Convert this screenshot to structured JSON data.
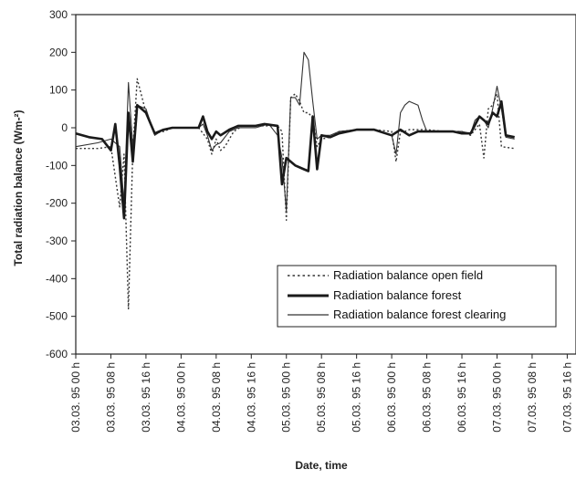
{
  "chart_data": {
    "type": "line",
    "title": "",
    "xlabel": "Date, time",
    "ylabel": "Total radiation balance (Wm-²)",
    "ylim": [
      -600,
      300
    ],
    "yticks": [
      300,
      200,
      100,
      0,
      -100,
      -200,
      -300,
      -400,
      -500,
      -600
    ],
    "x_tick_labels": [
      "03.03. 95 00 h",
      "03.03. 95 08 h",
      "03.03. 95 16 h",
      "04.03. 95 00 h",
      "04.03. 95 08 h",
      "04.03. 95 16 h",
      "05.03. 95 00 h",
      "05.03. 95 08 h",
      "05.03. 95 16 h",
      "06.03. 95 00 h",
      "06.03. 95 08 h",
      "06.03. 95 16 h",
      "07.03. 95 00 h",
      "07.03. 95 08 h",
      "07.03. 95 16 h"
    ],
    "xlim_hours": [
      0,
      114
    ],
    "x_unit_note": "",
    "grid": false,
    "legend_position": "lower-right",
    "series": [
      {
        "name": "Radiation balance open field",
        "style": "dotted",
        "color": "#333333",
        "points": [
          [
            0,
            -55
          ],
          [
            5,
            -55
          ],
          [
            8,
            -50
          ],
          [
            10,
            -210
          ],
          [
            11,
            -70
          ],
          [
            12,
            -480
          ],
          [
            13,
            -60
          ],
          [
            14,
            130
          ],
          [
            16,
            40
          ],
          [
            18,
            -15
          ],
          [
            20,
            -10
          ],
          [
            22,
            0
          ],
          [
            24,
            0
          ],
          [
            28,
            0
          ],
          [
            30,
            -30
          ],
          [
            31,
            -70
          ],
          [
            32,
            -30
          ],
          [
            33,
            -60
          ],
          [
            34,
            -50
          ],
          [
            36,
            -10
          ],
          [
            38,
            5
          ],
          [
            42,
            5
          ],
          [
            46,
            5
          ],
          [
            47,
            -10
          ],
          [
            48,
            -245
          ],
          [
            49,
            80
          ],
          [
            50,
            90
          ],
          [
            51,
            70
          ],
          [
            52,
            40
          ],
          [
            53,
            40
          ],
          [
            54,
            25
          ],
          [
            55,
            -50
          ],
          [
            56,
            -30
          ],
          [
            58,
            -25
          ],
          [
            60,
            -10
          ],
          [
            64,
            -5
          ],
          [
            68,
            -5
          ],
          [
            72,
            -10
          ],
          [
            73,
            -90
          ],
          [
            74,
            -10
          ],
          [
            75,
            -10
          ],
          [
            76,
            -5
          ],
          [
            80,
            -5
          ],
          [
            84,
            -10
          ],
          [
            88,
            -10
          ],
          [
            90,
            -20
          ],
          [
            92,
            10
          ],
          [
            93,
            -80
          ],
          [
            94,
            50
          ],
          [
            95,
            60
          ],
          [
            96,
            90
          ],
          [
            97,
            -50
          ],
          [
            100,
            -55
          ]
        ]
      },
      {
        "name": "Radiation balance forest",
        "style": "thick",
        "color": "#1a1a1a",
        "points": [
          [
            0,
            -15
          ],
          [
            3,
            -25
          ],
          [
            6,
            -30
          ],
          [
            8,
            -60
          ],
          [
            9,
            10
          ],
          [
            10,
            -100
          ],
          [
            11,
            -240
          ],
          [
            12,
            40
          ],
          [
            13,
            -90
          ],
          [
            14,
            60
          ],
          [
            16,
            40
          ],
          [
            18,
            -15
          ],
          [
            20,
            -5
          ],
          [
            22,
            0
          ],
          [
            25,
            0
          ],
          [
            28,
            0
          ],
          [
            29,
            30
          ],
          [
            30,
            -10
          ],
          [
            31,
            -30
          ],
          [
            32,
            -10
          ],
          [
            33,
            -20
          ],
          [
            35,
            -5
          ],
          [
            37,
            5
          ],
          [
            41,
            5
          ],
          [
            43,
            10
          ],
          [
            46,
            5
          ],
          [
            47,
            -150
          ],
          [
            48,
            -80
          ],
          [
            50,
            -100
          ],
          [
            52,
            -110
          ],
          [
            53,
            -115
          ],
          [
            54,
            30
          ],
          [
            55,
            -110
          ],
          [
            56,
            -20
          ],
          [
            58,
            -25
          ],
          [
            60,
            -15
          ],
          [
            64,
            -5
          ],
          [
            68,
            -5
          ],
          [
            72,
            -20
          ],
          [
            74,
            -5
          ],
          [
            76,
            -20
          ],
          [
            78,
            -10
          ],
          [
            82,
            -10
          ],
          [
            86,
            -10
          ],
          [
            88,
            -15
          ],
          [
            90,
            -15
          ],
          [
            92,
            30
          ],
          [
            93,
            20
          ],
          [
            94,
            10
          ],
          [
            95,
            40
          ],
          [
            96,
            30
          ],
          [
            97,
            70
          ],
          [
            98,
            -20
          ],
          [
            100,
            -25
          ]
        ]
      },
      {
        "name": "Radiation balance forest clearing",
        "style": "thin",
        "color": "#333333",
        "points": [
          [
            0,
            -50
          ],
          [
            5,
            -40
          ],
          [
            8,
            -30
          ],
          [
            10,
            -50
          ],
          [
            11,
            -200
          ],
          [
            12,
            120
          ],
          [
            13,
            -50
          ],
          [
            14,
            60
          ],
          [
            16,
            50
          ],
          [
            18,
            -20
          ],
          [
            20,
            -5
          ],
          [
            22,
            0
          ],
          [
            25,
            0
          ],
          [
            28,
            0
          ],
          [
            29,
            10
          ],
          [
            30,
            -20
          ],
          [
            31,
            -60
          ],
          [
            32,
            -45
          ],
          [
            33,
            -40
          ],
          [
            35,
            -10
          ],
          [
            37,
            0
          ],
          [
            41,
            0
          ],
          [
            44,
            10
          ],
          [
            46,
            -20
          ],
          [
            47,
            -80
          ],
          [
            48,
            -220
          ],
          [
            49,
            80
          ],
          [
            50,
            80
          ],
          [
            51,
            60
          ],
          [
            52,
            200
          ],
          [
            53,
            180
          ],
          [
            54,
            70
          ],
          [
            55,
            -30
          ],
          [
            56,
            -20
          ],
          [
            58,
            -20
          ],
          [
            60,
            -10
          ],
          [
            64,
            -5
          ],
          [
            68,
            -5
          ],
          [
            72,
            -20
          ],
          [
            73,
            -70
          ],
          [
            74,
            40
          ],
          [
            75,
            60
          ],
          [
            76,
            70
          ],
          [
            78,
            60
          ],
          [
            79,
            20
          ],
          [
            80,
            -10
          ],
          [
            84,
            -10
          ],
          [
            88,
            -10
          ],
          [
            90,
            -15
          ],
          [
            91,
            20
          ],
          [
            92,
            30
          ],
          [
            93,
            20
          ],
          [
            94,
            0
          ],
          [
            95,
            50
          ],
          [
            96,
            110
          ],
          [
            97,
            50
          ],
          [
            98,
            -25
          ],
          [
            100,
            -30
          ]
        ]
      }
    ]
  }
}
